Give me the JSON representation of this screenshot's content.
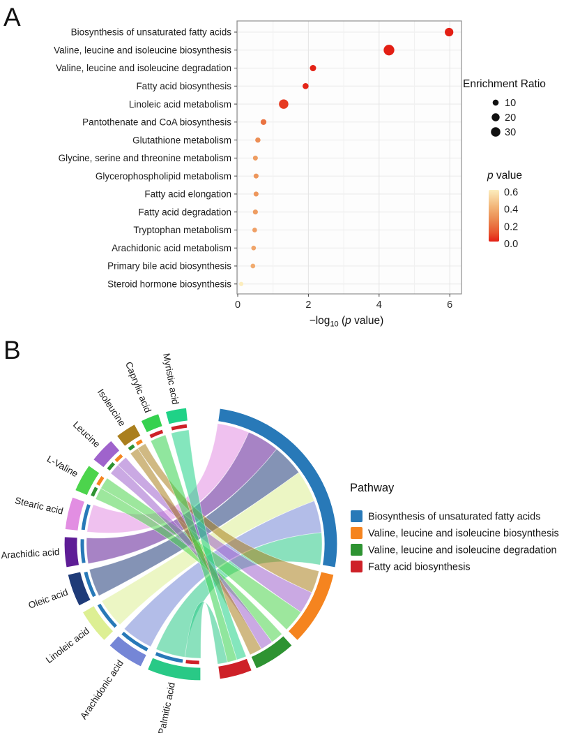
{
  "panels": {
    "a_label": "A",
    "b_label": "B"
  },
  "chart_data": [
    {
      "type": "scatter",
      "name": "pathway-enrichment-dot-plot",
      "xlabel": "-log10 (p value)",
      "xlabel_parts": {
        "pre": "−log",
        "sub": "10",
        "mid": " (",
        "italic_p": "p",
        "post": " value)"
      },
      "x_ticks": [
        0,
        2,
        4,
        6
      ],
      "xlim": [
        0,
        6.33
      ],
      "grid": true,
      "points": [
        {
          "pathway": "Biosynthesis of unsaturated fatty acids",
          "neg_log10_p": 5.98,
          "enrichment_ratio": 24,
          "p_value": 1e-06
        },
        {
          "pathway": "Valine, leucine and isoleucine biosynthesis",
          "neg_log10_p": 4.28,
          "enrichment_ratio": 40,
          "p_value": 5e-05
        },
        {
          "pathway": "Valine, leucine and isoleucine degradation",
          "neg_log10_p": 2.13,
          "enrichment_ratio": 11,
          "p_value": 0.0074
        },
        {
          "pathway": "Fatty acid biosynthesis",
          "neg_log10_p": 1.92,
          "enrichment_ratio": 10,
          "p_value": 0.012
        },
        {
          "pathway": "Linoleic acid metabolism",
          "neg_log10_p": 1.3,
          "enrichment_ratio": 30,
          "p_value": 0.05
        },
        {
          "pathway": "Pantothenate and CoA biosynthesis",
          "neg_log10_p": 0.73,
          "enrichment_ratio": 9,
          "p_value": 0.19
        },
        {
          "pathway": "Glutathione metabolism",
          "neg_log10_p": 0.57,
          "enrichment_ratio": 7,
          "p_value": 0.27
        },
        {
          "pathway": "Glycine, serine and threonine metabolism",
          "neg_log10_p": 0.5,
          "enrichment_ratio": 6,
          "p_value": 0.32
        },
        {
          "pathway": "Glycerophospholipid metabolism",
          "neg_log10_p": 0.52,
          "enrichment_ratio": 6,
          "p_value": 0.3
        },
        {
          "pathway": "Fatty acid elongation",
          "neg_log10_p": 0.52,
          "enrichment_ratio": 6,
          "p_value": 0.3
        },
        {
          "pathway": "Fatty acid degradation",
          "neg_log10_p": 0.5,
          "enrichment_ratio": 6,
          "p_value": 0.32
        },
        {
          "pathway": "Tryptophan metabolism",
          "neg_log10_p": 0.48,
          "enrichment_ratio": 5,
          "p_value": 0.33
        },
        {
          "pathway": "Arachidonic acid metabolism",
          "neg_log10_p": 0.45,
          "enrichment_ratio": 5,
          "p_value": 0.35
        },
        {
          "pathway": "Primary bile acid biosynthesis",
          "neg_log10_p": 0.43,
          "enrichment_ratio": 5,
          "p_value": 0.37
        },
        {
          "pathway": "Steroid hormone biosynthesis",
          "neg_log10_p": 0.1,
          "enrichment_ratio": 4,
          "p_value": 0.79
        }
      ],
      "size_legend": {
        "title": "Enrichment Ratio",
        "values": [
          10,
          20,
          30
        ],
        "dot_color": "#111111"
      },
      "color_legend": {
        "title_italic": "p",
        "title_rest": " value",
        "ticks": [
          "0.6",
          "0.4",
          "0.2",
          "0.0"
        ],
        "range": [
          0.0,
          0.6
        ],
        "stops": [
          {
            "p": 0.0,
            "color": "#e31f14"
          },
          {
            "p": 0.1,
            "color": "#e8542e"
          },
          {
            "p": 0.25,
            "color": "#eb8850"
          },
          {
            "p": 0.4,
            "color": "#f2b477"
          },
          {
            "p": 0.6,
            "color": "#fcedbd"
          }
        ]
      }
    },
    {
      "type": "chord",
      "name": "metabolite-pathway-chord-diagram",
      "legend": {
        "title": "Pathway"
      },
      "pathways": [
        {
          "name": "Biosynthesis of unsaturated fatty acids",
          "color": "#2879b8",
          "start": 8,
          "end": 100
        },
        {
          "name": "Valine, leucine and isoleucine biosynthesis",
          "color": "#f5841f",
          "start": 103,
          "end": 135
        },
        {
          "name": "Valine, leucine and isoleucine degradation",
          "color": "#2e9332",
          "start": 138,
          "end": 156
        },
        {
          "name": "Fatty acid biosynthesis",
          "color": "#ce2128",
          "start": 158,
          "end": 172
        }
      ],
      "metabolites": [
        {
          "name": "Palmitic acid",
          "color": "#29c986",
          "start": 180,
          "end": 203
        },
        {
          "name": "Arachidonic acid",
          "color": "#7586d6",
          "start": 206,
          "end": 222
        },
        {
          "name": "Linoleic acid",
          "color": "#ddef93",
          "start": 225,
          "end": 240
        },
        {
          "name": "Oleic acid",
          "color": "#1f3b78",
          "start": 243,
          "end": 257
        },
        {
          "name": "Arachidic acid",
          "color": "#5e1d96",
          "start": 260,
          "end": 273
        },
        {
          "name": "Stearic acid",
          "color": "#e28ee2",
          "start": 276,
          "end": 290
        },
        {
          "name": "L-Valine",
          "color": "#4cd44c",
          "start": 293,
          "end": 305
        },
        {
          "name": "Leucine",
          "color": "#9f63cc",
          "start": 308,
          "end": 319
        },
        {
          "name": "Isoleucine",
          "color": "#aa7f1e",
          "start": 322,
          "end": 331
        },
        {
          "name": "Caprylic acid",
          "color": "#35d14f",
          "start": 334,
          "end": 342
        },
        {
          "name": "Myristic acid",
          "color": "#1fd287",
          "start": 345,
          "end": 354
        }
      ],
      "links": [
        {
          "metabolite": "Stearic acid",
          "pathway": 0,
          "m": [
            276,
            290
          ],
          "p": [
            8,
            23.3
          ]
        },
        {
          "metabolite": "Arachidic acid",
          "pathway": 0,
          "m": [
            260,
            273
          ],
          "p": [
            23.3,
            38.7
          ]
        },
        {
          "metabolite": "Oleic acid",
          "pathway": 0,
          "m": [
            243,
            257
          ],
          "p": [
            38.7,
            54
          ]
        },
        {
          "metabolite": "Linoleic acid",
          "pathway": 0,
          "m": [
            225,
            240
          ],
          "p": [
            54,
            69.3
          ]
        },
        {
          "metabolite": "Arachidonic acid",
          "pathway": 0,
          "m": [
            206,
            222
          ],
          "p": [
            69.3,
            84.7
          ]
        },
        {
          "metabolite": "Palmitic acid",
          "pathway": 0,
          "m": [
            188,
            203
          ],
          "p": [
            84.7,
            100
          ]
        },
        {
          "metabolite": "Isoleucine",
          "pathway": 1,
          "m": [
            326.5,
            331
          ],
          "p": [
            103,
            113.7
          ]
        },
        {
          "metabolite": "Leucine",
          "pathway": 1,
          "m": [
            313.5,
            319
          ],
          "p": [
            113.7,
            124.3
          ]
        },
        {
          "metabolite": "L-Valine",
          "pathway": 1,
          "m": [
            299,
            305
          ],
          "p": [
            124.3,
            135
          ]
        },
        {
          "metabolite": "L-Valine",
          "pathway": 2,
          "m": [
            293,
            299
          ],
          "p": [
            138,
            144
          ]
        },
        {
          "metabolite": "Leucine",
          "pathway": 2,
          "m": [
            308,
            313.5
          ],
          "p": [
            144,
            150
          ]
        },
        {
          "metabolite": "Isoleucine",
          "pathway": 2,
          "m": [
            322,
            326.5
          ],
          "p": [
            150,
            156
          ]
        },
        {
          "metabolite": "Myristic acid",
          "pathway": 3,
          "m": [
            345,
            354
          ],
          "p": [
            158,
            162.7
          ]
        },
        {
          "metabolite": "Caprylic acid",
          "pathway": 3,
          "m": [
            334,
            342
          ],
          "p": [
            162.7,
            167.3
          ]
        },
        {
          "metabolite": "Palmitic acid",
          "pathway": 3,
          "m": [
            180,
            188
          ],
          "p": [
            167.3,
            172
          ]
        }
      ]
    }
  ]
}
